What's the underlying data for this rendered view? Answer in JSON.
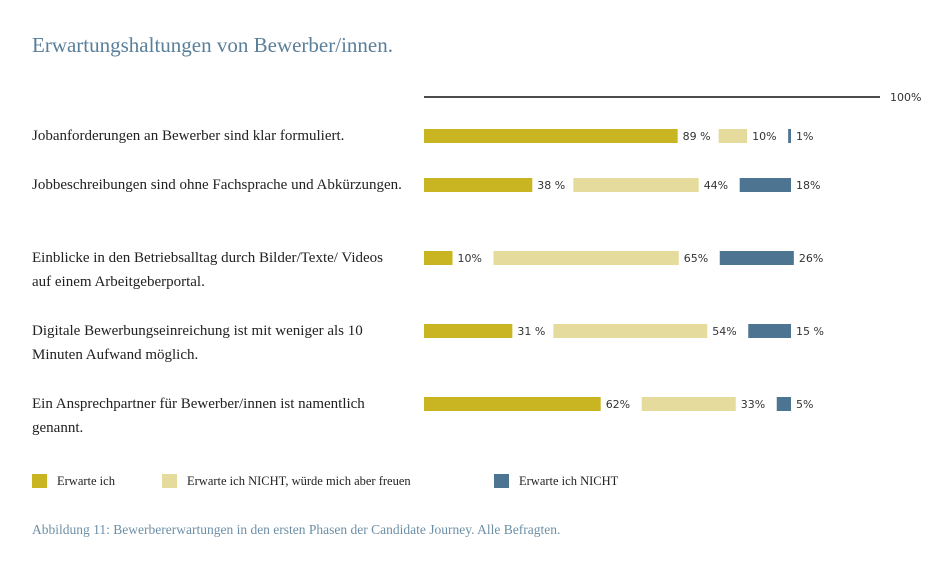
{
  "chart_data": {
    "type": "segmented-bar",
    "title": "Erwartungshaltungen von Bewerber/innen.",
    "caption": "Abbildung 11: Bewerbererwartungen in den ersten Phasen der Candidate Journey. Alle Befragten.",
    "categories": [
      "Jobanforderungen an Bewerber sind klar formuliert.",
      "Jobbeschreibungen sind ohne Fachsprache und Abkürzungen.",
      "Einblicke in den Betriebsalltag durch Bilder/Texte/ Videos auf einem Arbeitgeberportal.",
      "Digitale Bewerbungseinreichung ist mit weniger als 10 Minuten Aufwand möglich.",
      "Ein Ansprechpartner für Bewerber/innen ist namentlich genannt."
    ],
    "xlim": [
      0,
      100
    ],
    "xticks": [
      {
        "value": 100,
        "label": "100%"
      }
    ],
    "series": [
      {
        "name": "Erwarte ich",
        "color": "#c9b422",
        "values": [
          89,
          38,
          10,
          31,
          62
        ],
        "value_labels": [
          "89 %",
          "38 %",
          "10%",
          "31 %",
          "62%"
        ]
      },
      {
        "name": "Erwarte ich NICHT, würde mich aber freuen",
        "color": "#e5db9c",
        "values": [
          10,
          44,
          65,
          54,
          33
        ],
        "value_labels": [
          "10%",
          "44%",
          "65%",
          "54%",
          "33%"
        ]
      },
      {
        "name": "Erwarte ich NICHT",
        "color": "#4d7591",
        "values": [
          1,
          18,
          26,
          15,
          5
        ],
        "value_labels": [
          "1%",
          "18%",
          "26%",
          "15 %",
          "5%"
        ]
      }
    ]
  }
}
